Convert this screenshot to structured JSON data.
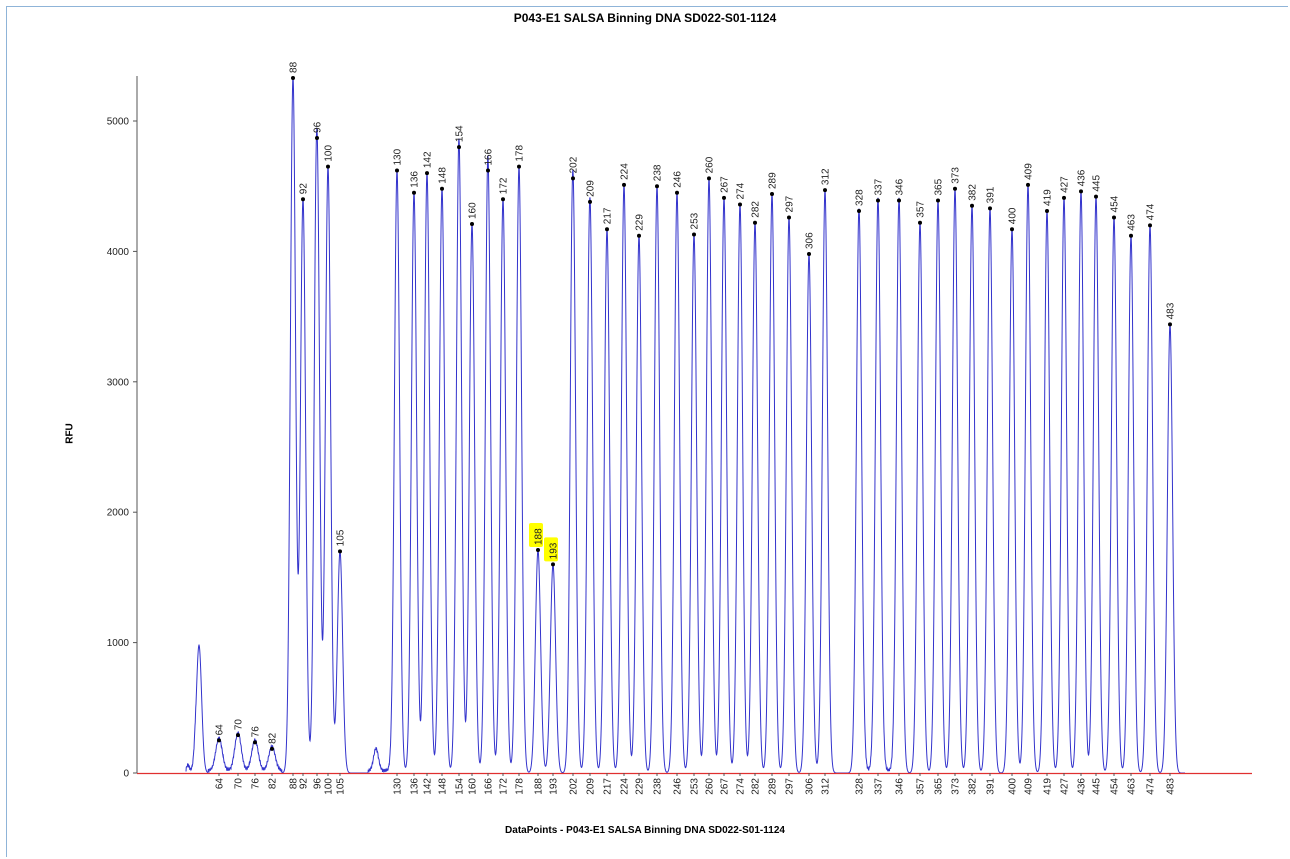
{
  "chart_data": {
    "type": "line",
    "title": "P043-E1 SALSA Binning DNA SD022-S01-1124",
    "xlabel": "DataPoints - P043-E1 SALSA Binning DNA SD022-S01-1124",
    "ylabel": "RFU",
    "ylim": [
      0,
      5300
    ],
    "yticks": [
      0,
      1000,
      2000,
      3000,
      4000,
      5000
    ],
    "grid": false,
    "legend": "none",
    "colors": {
      "trace": "#3333cc",
      "baseline": "#e03030",
      "highlight": "#ffff00",
      "peak_marker": "#000000"
    },
    "unlabeled_peaks": [
      {
        "x": 64,
        "rfu": 980
      },
      {
        "x": 112,
        "rfu": 170
      }
    ],
    "peaks": [
      {
        "label": "64",
        "rfu": 250
      },
      {
        "label": "70",
        "rfu": 290
      },
      {
        "label": "76",
        "rfu": 235
      },
      {
        "label": "82",
        "rfu": 185
      },
      {
        "label": "88",
        "rfu": 5330
      },
      {
        "label": "92",
        "rfu": 4400
      },
      {
        "label": "96",
        "rfu": 4870
      },
      {
        "label": "100",
        "rfu": 4650
      },
      {
        "label": "105",
        "rfu": 1700
      },
      {
        "label": "130",
        "rfu": 4620
      },
      {
        "label": "136",
        "rfu": 4450
      },
      {
        "label": "142",
        "rfu": 4600
      },
      {
        "label": "148",
        "rfu": 4480
      },
      {
        "label": "154",
        "rfu": 4800
      },
      {
        "label": "160",
        "rfu": 4210
      },
      {
        "label": "166",
        "rfu": 4620
      },
      {
        "label": "172",
        "rfu": 4400
      },
      {
        "label": "178",
        "rfu": 4650
      },
      {
        "label": "188",
        "rfu": 1710,
        "highlighted": true
      },
      {
        "label": "193",
        "rfu": 1600,
        "highlighted": true
      },
      {
        "label": "202",
        "rfu": 4560
      },
      {
        "label": "209",
        "rfu": 4380
      },
      {
        "label": "217",
        "rfu": 4170
      },
      {
        "label": "224",
        "rfu": 4510
      },
      {
        "label": "229",
        "rfu": 4120
      },
      {
        "label": "238",
        "rfu": 4500
      },
      {
        "label": "246",
        "rfu": 4450
      },
      {
        "label": "253",
        "rfu": 4130
      },
      {
        "label": "260",
        "rfu": 4560
      },
      {
        "label": "267",
        "rfu": 4410
      },
      {
        "label": "274",
        "rfu": 4360
      },
      {
        "label": "282",
        "rfu": 4220
      },
      {
        "label": "289",
        "rfu": 4440
      },
      {
        "label": "297",
        "rfu": 4260
      },
      {
        "label": "306",
        "rfu": 3980
      },
      {
        "label": "312",
        "rfu": 4470
      },
      {
        "label": "328",
        "rfu": 4310
      },
      {
        "label": "337",
        "rfu": 4390
      },
      {
        "label": "346",
        "rfu": 4390
      },
      {
        "label": "357",
        "rfu": 4220
      },
      {
        "label": "365",
        "rfu": 4390
      },
      {
        "label": "373",
        "rfu": 4480
      },
      {
        "label": "382",
        "rfu": 4350
      },
      {
        "label": "391",
        "rfu": 4330
      },
      {
        "label": "400",
        "rfu": 4170
      },
      {
        "label": "409",
        "rfu": 4510
      },
      {
        "label": "419",
        "rfu": 4310
      },
      {
        "label": "427",
        "rfu": 4410
      },
      {
        "label": "436",
        "rfu": 4460
      },
      {
        "label": "445",
        "rfu": 4420
      },
      {
        "label": "454",
        "rfu": 4260
      },
      {
        "label": "463",
        "rfu": 4120
      },
      {
        "label": "474",
        "rfu": 4200
      },
      {
        "label": "483",
        "rfu": 3440
      }
    ]
  }
}
